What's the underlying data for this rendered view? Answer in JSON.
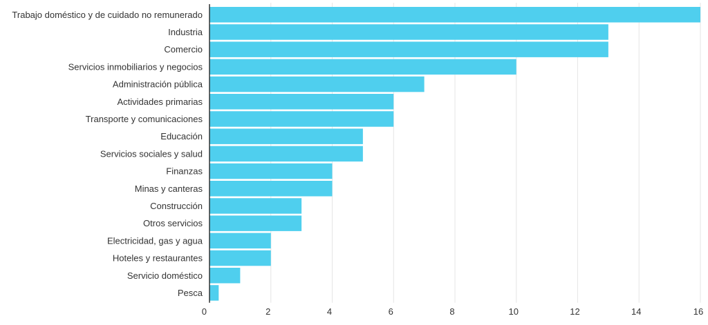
{
  "chart_data": {
    "type": "bar",
    "orientation": "horizontal",
    "categories": [
      "Trabajo doméstico y de cuidado no remunerado",
      "Industria",
      "Comercio",
      "Servicios inmobiliarios y negocios",
      "Administración pública",
      "Actividades primarias",
      "Transporte y comunicaciones",
      "Educación",
      "Servicios sociales y salud",
      "Finanzas",
      "Minas y canteras",
      "Construcción",
      "Otros servicios",
      "Electricidad, gas y agua",
      "Hoteles y restaurantes",
      "Servicio doméstico",
      "Pesca"
    ],
    "values": [
      16,
      13,
      13,
      10,
      7,
      6,
      6,
      5,
      5,
      4,
      4,
      3,
      3,
      2,
      2,
      1,
      0.3
    ],
    "xlim": [
      0,
      16
    ],
    "x_ticks": [
      "0",
      "2",
      "4",
      "6",
      "8",
      "10",
      "12",
      "14",
      "16"
    ],
    "grid": true,
    "bar_color": "#4fcfee"
  }
}
